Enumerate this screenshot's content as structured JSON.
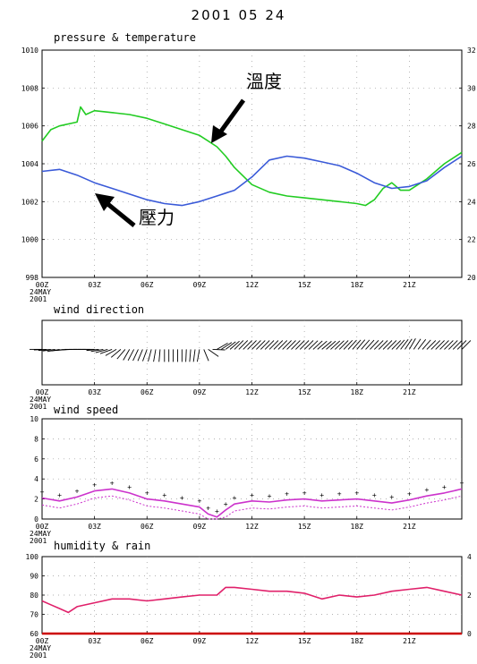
{
  "header": {
    "date": "2001 05 24"
  },
  "annotations": {
    "temperature": "溫度",
    "pressure": "壓力"
  },
  "x_axis": {
    "ticks": [
      "00Z",
      "03Z",
      "06Z",
      "09Z",
      "12Z",
      "15Z",
      "18Z",
      "21Z"
    ],
    "first_label_lines": [
      "24MAY",
      "2001"
    ]
  },
  "chart_data": [
    {
      "type": "line",
      "title": "pressure & temperature",
      "x_range_hours": [
        0,
        24
      ],
      "y_left": {
        "ticks": [
          "998",
          "1000",
          "1002",
          "1004",
          "1006",
          "1008",
          "1010"
        ],
        "range": [
          998,
          1010
        ]
      },
      "y_right": {
        "ticks": [
          "20",
          "22",
          "24",
          "26",
          "28",
          "30",
          "32"
        ],
        "range": [
          20,
          32
        ]
      },
      "series": [
        {
          "id": "temperature",
          "axis": "right",
          "color": "#22cc22",
          "x": [
            0,
            0.5,
            1,
            2,
            2.2,
            2.5,
            3,
            4,
            5,
            6,
            7,
            8,
            9,
            9.5,
            10,
            10.5,
            11,
            12,
            13,
            14,
            15,
            16,
            17,
            18,
            18.5,
            19,
            19.5,
            20,
            20.5,
            21,
            22,
            23,
            24
          ],
          "y": [
            27.2,
            27.8,
            28.0,
            28.2,
            29.0,
            28.6,
            28.8,
            28.7,
            28.6,
            28.4,
            28.1,
            27.8,
            27.5,
            27.2,
            26.9,
            26.4,
            25.8,
            24.9,
            24.5,
            24.3,
            24.2,
            24.1,
            24.0,
            23.9,
            23.8,
            24.1,
            24.7,
            25.0,
            24.6,
            24.6,
            25.2,
            26.0,
            26.6
          ]
        },
        {
          "id": "pressure",
          "axis": "left",
          "color": "#3a5ad8",
          "x": [
            0,
            1,
            2,
            3,
            4,
            5,
            6,
            7,
            8,
            9,
            10,
            11,
            12,
            13,
            14,
            15,
            16,
            17,
            18,
            19,
            20,
            21,
            22,
            23,
            24
          ],
          "y": [
            1003.6,
            1003.7,
            1003.4,
            1003.0,
            1002.7,
            1002.4,
            1002.1,
            1001.9,
            1001.8,
            1002.0,
            1002.3,
            1002.6,
            1003.3,
            1004.2,
            1004.4,
            1004.3,
            1004.1,
            1003.9,
            1003.5,
            1003.0,
            1002.7,
            1002.8,
            1003.1,
            1003.8,
            1004.4
          ]
        }
      ]
    },
    {
      "type": "line",
      "title": "wind direction",
      "x_range_hours": [
        0,
        24
      ],
      "note": "wind barbs along the plot centerline; direction in degrees",
      "series": [
        {
          "id": "wind_dir_deg",
          "x": [
            0,
            1,
            2,
            3,
            4,
            5,
            6,
            7,
            8,
            9,
            10,
            11,
            12,
            13,
            14,
            15,
            16,
            17,
            18,
            19,
            20,
            21,
            22,
            23,
            24
          ],
          "y": [
            270,
            260,
            270,
            270,
            250,
            210,
            200,
            180,
            180,
            190,
            60,
            45,
            45,
            45,
            45,
            45,
            50,
            45,
            40,
            45,
            45,
            30,
            45,
            45,
            45
          ]
        }
      ]
    },
    {
      "type": "line",
      "title": "wind speed",
      "x_range_hours": [
        0,
        24
      ],
      "y_left": {
        "ticks": [
          "0",
          "2",
          "4",
          "6",
          "8",
          "10"
        ],
        "range": [
          0,
          10
        ]
      },
      "series": [
        {
          "id": "wind_speed",
          "color": "#cc33cc",
          "x": [
            0,
            1,
            2,
            3,
            4,
            5,
            6,
            7,
            8,
            9,
            9.5,
            10,
            10.5,
            11,
            12,
            13,
            14,
            15,
            16,
            17,
            18,
            19,
            20,
            21,
            22,
            23,
            24
          ],
          "y": [
            2.1,
            1.8,
            2.2,
            2.8,
            3.0,
            2.6,
            2.0,
            1.8,
            1.5,
            1.2,
            0.5,
            0.2,
            0.9,
            1.5,
            1.8,
            1.7,
            1.9,
            2.0,
            1.8,
            1.9,
            2.0,
            1.8,
            1.6,
            1.9,
            2.3,
            2.6,
            3.0
          ]
        }
      ]
    },
    {
      "type": "line",
      "title": "humidity & rain",
      "x_range_hours": [
        0,
        24
      ],
      "y_left": {
        "ticks": [
          "60",
          "70",
          "80",
          "90",
          "100"
        ],
        "range": [
          60,
          100
        ]
      },
      "y_right": {
        "ticks": [
          "0",
          "2",
          "4"
        ],
        "range": [
          0,
          4
        ]
      },
      "series": [
        {
          "id": "humidity",
          "axis": "left",
          "color": "#e0206a",
          "x": [
            0,
            0.5,
            1,
            1.5,
            2,
            3,
            4,
            5,
            6,
            7,
            8,
            9,
            10,
            10.5,
            11,
            12,
            13,
            14,
            15,
            16,
            17,
            18,
            19,
            20,
            21,
            22,
            23,
            24
          ],
          "y": [
            77,
            75,
            73,
            71,
            74,
            76,
            78,
            78,
            77,
            78,
            79,
            80,
            80,
            84,
            84,
            83,
            82,
            82,
            81,
            78,
            80,
            79,
            80,
            82,
            83,
            84,
            82,
            80
          ]
        },
        {
          "id": "rain",
          "axis": "right",
          "color": "#cc0000",
          "x": [
            0,
            24
          ],
          "y": [
            0,
            0
          ]
        }
      ]
    }
  ]
}
